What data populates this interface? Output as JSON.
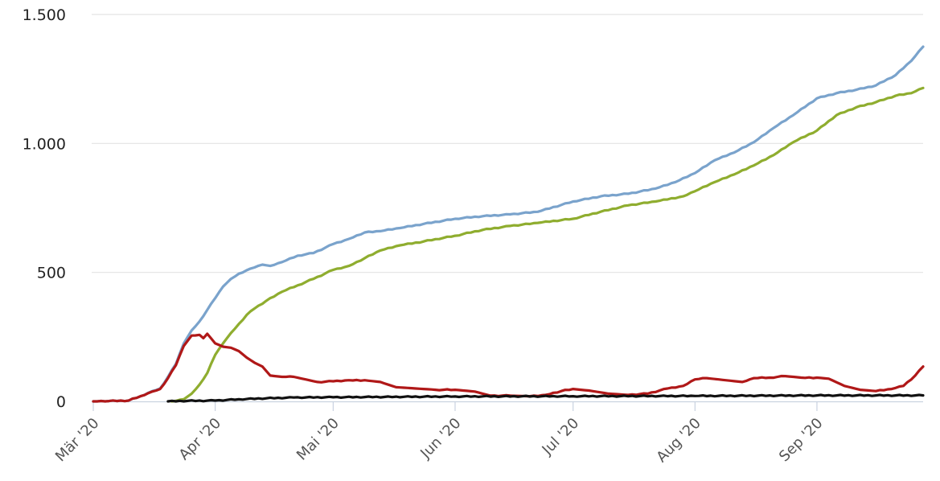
{
  "chart_data": {
    "type": "line",
    "title": "",
    "xlabel": "",
    "ylabel": "",
    "ylim": [
      0,
      1500
    ],
    "yticks": [
      0,
      500,
      1000,
      1500
    ],
    "ytick_labels": [
      "0",
      "500",
      "1.000",
      "1.500"
    ],
    "xlim": [
      "2020-03-01",
      "2020-09-28"
    ],
    "xticks": [
      "2020-03-01",
      "2020-04-01",
      "2020-05-01",
      "2020-06-01",
      "2020-07-01",
      "2020-08-01",
      "2020-09-01"
    ],
    "xtick_labels": [
      "Mär '20",
      "Apr '20",
      "Mai '20",
      "Jun '20",
      "Jul '20",
      "Aug '20",
      "Sep '20"
    ],
    "grid": true,
    "legend": "none",
    "series": [
      {
        "color": "#7aa3cc",
        "points": [
          [
            "2020-03-01",
            0
          ],
          [
            "2020-03-10",
            3
          ],
          [
            "2020-03-13",
            20
          ],
          [
            "2020-03-16",
            40
          ],
          [
            "2020-03-18",
            50
          ],
          [
            "2020-03-20",
            95
          ],
          [
            "2020-03-22",
            145
          ],
          [
            "2020-03-24",
            225
          ],
          [
            "2020-03-26",
            275
          ],
          [
            "2020-03-28",
            310
          ],
          [
            "2020-03-30",
            355
          ],
          [
            "2020-04-01",
            400
          ],
          [
            "2020-04-03",
            445
          ],
          [
            "2020-04-05",
            475
          ],
          [
            "2020-04-07",
            495
          ],
          [
            "2020-04-10",
            515
          ],
          [
            "2020-04-13",
            530
          ],
          [
            "2020-04-15",
            525
          ],
          [
            "2020-04-18",
            540
          ],
          [
            "2020-04-22",
            565
          ],
          [
            "2020-04-26",
            575
          ],
          [
            "2020-05-01",
            610
          ],
          [
            "2020-05-05",
            630
          ],
          [
            "2020-05-09",
            655
          ],
          [
            "2020-05-13",
            660
          ],
          [
            "2020-05-18",
            672
          ],
          [
            "2020-05-24",
            688
          ],
          [
            "2020-06-01",
            708
          ],
          [
            "2020-06-08",
            718
          ],
          [
            "2020-06-15",
            725
          ],
          [
            "2020-06-22",
            735
          ],
          [
            "2020-07-01",
            775
          ],
          [
            "2020-07-08",
            795
          ],
          [
            "2020-07-15",
            805
          ],
          [
            "2020-07-22",
            825
          ],
          [
            "2020-07-27",
            850
          ],
          [
            "2020-08-01",
            885
          ],
          [
            "2020-08-06",
            935
          ],
          [
            "2020-08-11",
            965
          ],
          [
            "2020-08-16",
            1005
          ],
          [
            "2020-08-21",
            1060
          ],
          [
            "2020-08-26",
            1110
          ],
          [
            "2020-09-01",
            1175
          ],
          [
            "2020-09-06",
            1195
          ],
          [
            "2020-09-11",
            1208
          ],
          [
            "2020-09-16",
            1225
          ],
          [
            "2020-09-21",
            1265
          ],
          [
            "2020-09-25",
            1320
          ],
          [
            "2020-09-28",
            1375
          ]
        ]
      },
      {
        "color": "#8fad2f",
        "points": [
          [
            "2020-03-21",
            0
          ],
          [
            "2020-03-24",
            8
          ],
          [
            "2020-03-26",
            30
          ],
          [
            "2020-03-28",
            65
          ],
          [
            "2020-03-30",
            110
          ],
          [
            "2020-04-01",
            180
          ],
          [
            "2020-04-03",
            225
          ],
          [
            "2020-04-05",
            265
          ],
          [
            "2020-04-07",
            300
          ],
          [
            "2020-04-09",
            335
          ],
          [
            "2020-04-11",
            360
          ],
          [
            "2020-04-14",
            390
          ],
          [
            "2020-04-18",
            425
          ],
          [
            "2020-04-22",
            450
          ],
          [
            "2020-04-26",
            475
          ],
          [
            "2020-05-01",
            510
          ],
          [
            "2020-05-05",
            525
          ],
          [
            "2020-05-09",
            555
          ],
          [
            "2020-05-13",
            585
          ],
          [
            "2020-05-18",
            605
          ],
          [
            "2020-05-24",
            620
          ],
          [
            "2020-06-01",
            642
          ],
          [
            "2020-06-08",
            665
          ],
          [
            "2020-06-15",
            680
          ],
          [
            "2020-06-22",
            692
          ],
          [
            "2020-07-01",
            708
          ],
          [
            "2020-07-08",
            735
          ],
          [
            "2020-07-15",
            760
          ],
          [
            "2020-07-22",
            775
          ],
          [
            "2020-07-29",
            795
          ],
          [
            "2020-08-01",
            815
          ],
          [
            "2020-08-06",
            850
          ],
          [
            "2020-08-11",
            880
          ],
          [
            "2020-08-16",
            915
          ],
          [
            "2020-08-21",
            955
          ],
          [
            "2020-08-26",
            1005
          ],
          [
            "2020-09-01",
            1050
          ],
          [
            "2020-09-06",
            1110
          ],
          [
            "2020-09-11",
            1140
          ],
          [
            "2020-09-16",
            1160
          ],
          [
            "2020-09-21",
            1185
          ],
          [
            "2020-09-25",
            1195
          ],
          [
            "2020-09-28",
            1215
          ]
        ]
      },
      {
        "color": "#b01818",
        "points": [
          [
            "2020-03-01",
            0
          ],
          [
            "2020-03-10",
            3
          ],
          [
            "2020-03-13",
            20
          ],
          [
            "2020-03-16",
            38
          ],
          [
            "2020-03-18",
            48
          ],
          [
            "2020-03-20",
            90
          ],
          [
            "2020-03-22",
            140
          ],
          [
            "2020-03-24",
            215
          ],
          [
            "2020-03-26",
            255
          ],
          [
            "2020-03-28",
            258
          ],
          [
            "2020-03-29",
            245
          ],
          [
            "2020-03-30",
            262
          ],
          [
            "2020-04-01",
            225
          ],
          [
            "2020-04-03",
            212
          ],
          [
            "2020-04-05",
            208
          ],
          [
            "2020-04-07",
            195
          ],
          [
            "2020-04-09",
            170
          ],
          [
            "2020-04-11",
            150
          ],
          [
            "2020-04-13",
            135
          ],
          [
            "2020-04-15",
            100
          ],
          [
            "2020-04-18",
            95
          ],
          [
            "2020-04-21",
            95
          ],
          [
            "2020-04-24",
            85
          ],
          [
            "2020-04-27",
            75
          ],
          [
            "2020-05-01",
            78
          ],
          [
            "2020-05-05",
            82
          ],
          [
            "2020-05-09",
            82
          ],
          [
            "2020-05-13",
            75
          ],
          [
            "2020-05-17",
            55
          ],
          [
            "2020-05-22",
            50
          ],
          [
            "2020-05-27",
            45
          ],
          [
            "2020-06-01",
            45
          ],
          [
            "2020-06-06",
            38
          ],
          [
            "2020-06-10",
            22
          ],
          [
            "2020-06-15",
            22
          ],
          [
            "2020-06-20",
            20
          ],
          [
            "2020-06-24",
            25
          ],
          [
            "2020-06-28",
            40
          ],
          [
            "2020-07-01",
            48
          ],
          [
            "2020-07-05",
            42
          ],
          [
            "2020-07-10",
            30
          ],
          [
            "2020-07-15",
            25
          ],
          [
            "2020-07-20",
            30
          ],
          [
            "2020-07-25",
            50
          ],
          [
            "2020-07-29",
            60
          ],
          [
            "2020-08-01",
            85
          ],
          [
            "2020-08-04",
            90
          ],
          [
            "2020-08-07",
            85
          ],
          [
            "2020-08-10",
            80
          ],
          [
            "2020-08-13",
            75
          ],
          [
            "2020-08-16",
            90
          ],
          [
            "2020-08-20",
            92
          ],
          [
            "2020-08-24",
            98
          ],
          [
            "2020-08-28",
            92
          ],
          [
            "2020-09-01",
            92
          ],
          [
            "2020-09-04",
            88
          ],
          [
            "2020-09-08",
            60
          ],
          [
            "2020-09-12",
            45
          ],
          [
            "2020-09-16",
            40
          ],
          [
            "2020-09-20",
            48
          ],
          [
            "2020-09-23",
            60
          ],
          [
            "2020-09-26",
            100
          ],
          [
            "2020-09-28",
            135
          ]
        ]
      },
      {
        "color": "#111111",
        "points": [
          [
            "2020-03-20",
            0
          ],
          [
            "2020-03-25",
            2
          ],
          [
            "2020-04-01",
            3
          ],
          [
            "2020-04-07",
            8
          ],
          [
            "2020-04-14",
            12
          ],
          [
            "2020-04-21",
            15
          ],
          [
            "2020-05-01",
            16
          ],
          [
            "2020-06-01",
            19
          ],
          [
            "2020-07-01",
            20
          ],
          [
            "2020-08-01",
            21
          ],
          [
            "2020-09-01",
            23
          ],
          [
            "2020-09-28",
            23
          ]
        ]
      }
    ]
  }
}
